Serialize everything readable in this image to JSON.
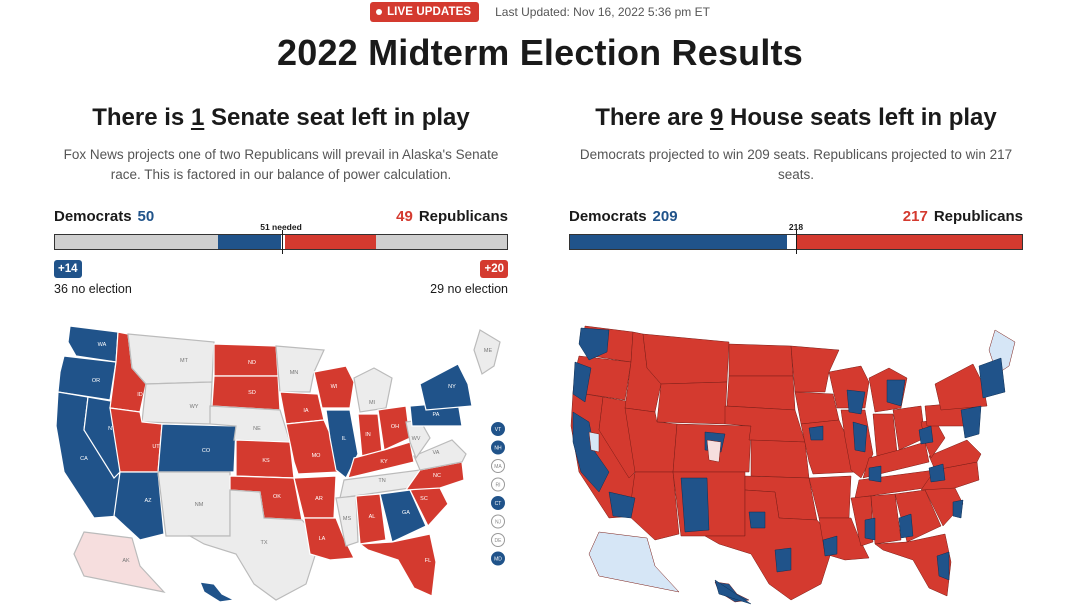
{
  "header": {
    "live_label": "LIVE UPDATES",
    "last_updated": "Last Updated: Nov 16, 2022 5:36 pm ET",
    "title": "2022 Midterm Election Results"
  },
  "senate": {
    "title_prefix": "There is ",
    "title_count": "1",
    "title_suffix": " Senate seat left in play",
    "description": "Fox News projects one of two Republicans will prevail in Alaska's Senate race. This is factored in our balance of power calculation.",
    "dem_label": "Democrats",
    "dem_count": "50",
    "rep_label": "Republicans",
    "rep_count": "49",
    "needed_label": "51 needed",
    "dem_badge": "+14",
    "rep_badge": "+20",
    "dem_no_election": "36 no election",
    "rep_no_election": "29 no election",
    "bar": {
      "dem_no_election": 36,
      "dem_won": 14,
      "undecided": 1,
      "rep_won": 20,
      "rep_no_election": 29
    },
    "map_states": {
      "WA": "D",
      "OR": "D",
      "CA": "D",
      "NV": "D",
      "AZ": "D",
      "ID": "R",
      "UT": "R",
      "CO": "D",
      "MT": "none",
      "WY": "none",
      "NM": "none",
      "ND": "R",
      "SD": "R",
      "NE": "none",
      "KS": "R",
      "OK": "R",
      "TX": "none",
      "MN": "none",
      "IA": "R",
      "MO": "R",
      "AR": "R",
      "LA": "R",
      "WI": "R",
      "IL": "D",
      "MI": "none",
      "IN": "R",
      "OH": "R",
      "KY": "R",
      "TN": "none",
      "MS": "none",
      "AL": "R",
      "GA": "D",
      "FL": "R",
      "SC": "R",
      "NC": "R",
      "VA": "none",
      "WV": "none",
      "PA": "D",
      "NY": "D",
      "ME": "none",
      "AK": "pending",
      "HI": "D"
    },
    "east_markers": [
      "VT",
      "NH",
      "MA",
      "RI",
      "CT",
      "NJ",
      "DE",
      "MD"
    ],
    "east_markers_party": [
      "D",
      "D",
      "none",
      "none",
      "D",
      "none",
      "none",
      "D"
    ]
  },
  "house": {
    "title_prefix": "There are ",
    "title_count": "9",
    "title_suffix": " House seats left in play",
    "description": "Democrats projected to win 209 seats. Republicans projected to win 217 seats.",
    "dem_label": "Democrats",
    "dem_count": "209",
    "rep_label": "Republicans",
    "rep_count": "217",
    "needed_label": "218",
    "bar": {
      "dem_won": 209,
      "undecided": 9,
      "rep_won": 217
    }
  },
  "colors": {
    "dem": "#20538a",
    "rep": "#d43a2f",
    "none": "#ececec",
    "pending_r": "#f6dede",
    "pending_d": "#d6e6f6",
    "live": "#d43a2f"
  }
}
